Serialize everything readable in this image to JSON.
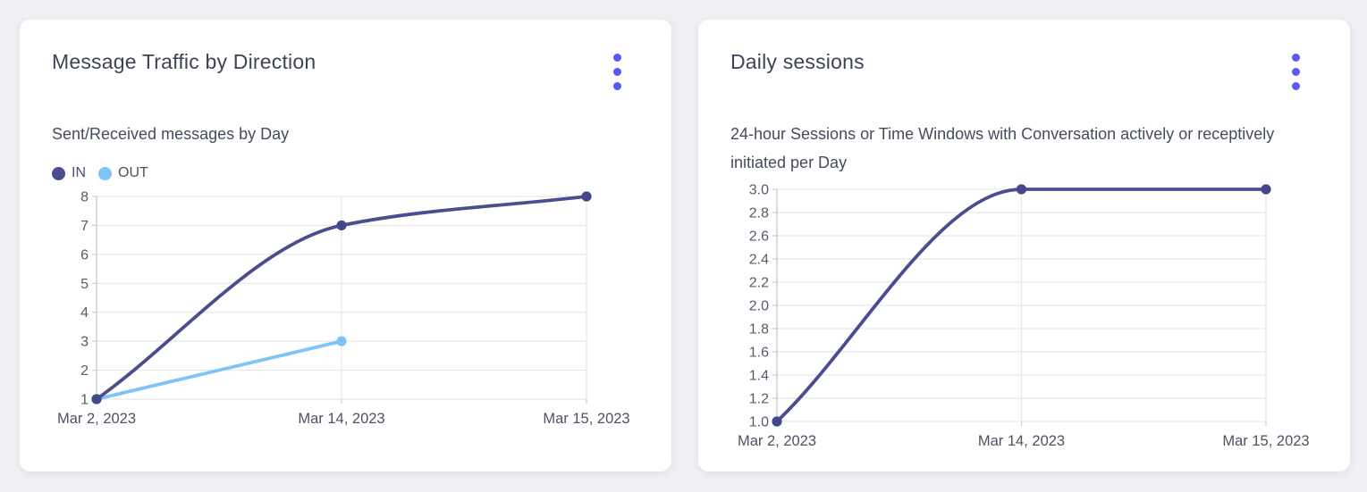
{
  "theme": {
    "page_bg": "#eff0f3",
    "card_bg": "#ffffff",
    "title_text": "#3e4356",
    "subtitle_text": "#454b61",
    "tick_text": "#555a6e",
    "grid": "#e7e7ea",
    "axis": "#c9ccd3",
    "menu_accent": "#5a5af0"
  },
  "cards": [
    {
      "title": "Message Traffic by Direction",
      "subtitle": "Sent/Received messages by Day",
      "menu_icon": "kebab-vertical"
    },
    {
      "title": "Daily sessions",
      "subtitle": "24-hour Sessions or Time Windows with Conversation actively or receptively initiated per Day",
      "menu_icon": "kebab-vertical"
    }
  ],
  "chart_data": [
    {
      "type": "line",
      "title": "Message Traffic by Direction",
      "subtitle": "Sent/Received messages by Day",
      "categories": [
        "Mar 2, 2023",
        "Mar 14, 2023",
        "Mar 15, 2023"
      ],
      "x_positions": [
        0,
        0.5,
        1
      ],
      "series": [
        {
          "name": "IN",
          "color": "#4a4e8f",
          "point_color": "#43478c",
          "values": [
            1,
            7,
            8
          ]
        },
        {
          "name": "OUT",
          "color": "#7ec4f4",
          "point_color": "#7cc4f5",
          "values": [
            1,
            3,
            null
          ]
        }
      ],
      "ylim": [
        1,
        8
      ],
      "yticks": [
        1,
        2,
        3,
        4,
        5,
        6,
        7,
        8
      ],
      "ytick_labels": [
        "1",
        "2",
        "3",
        "4",
        "5",
        "6",
        "7",
        "8"
      ],
      "xlabel": "",
      "ylabel": "",
      "grid": true,
      "curve": "monotone",
      "legend_position": "top-left"
    },
    {
      "type": "line",
      "title": "Daily sessions",
      "subtitle": "24-hour Sessions or Time Windows with Conversation actively or receptively initiated per Day",
      "categories": [
        "Mar 2, 2023",
        "Mar 14, 2023",
        "Mar 15, 2023"
      ],
      "x_positions": [
        0,
        0.5,
        1
      ],
      "series": [
        {
          "name": "Daily sessions",
          "color": "#4a4e8f",
          "point_color": "#43478c",
          "values": [
            1.0,
            3.0,
            3.0
          ]
        }
      ],
      "ylim": [
        1.0,
        3.0
      ],
      "yticks": [
        1.0,
        1.2,
        1.4,
        1.6,
        1.8,
        2.0,
        2.2,
        2.4,
        2.6,
        2.8,
        3.0
      ],
      "ytick_labels": [
        "1.0",
        "1.2",
        "1.4",
        "1.6",
        "1.8",
        "2.0",
        "2.2",
        "2.4",
        "2.6",
        "2.8",
        "3.0"
      ],
      "xlabel": "",
      "ylabel": "",
      "grid": true,
      "curve": "monotone",
      "legend_position": "none"
    }
  ]
}
